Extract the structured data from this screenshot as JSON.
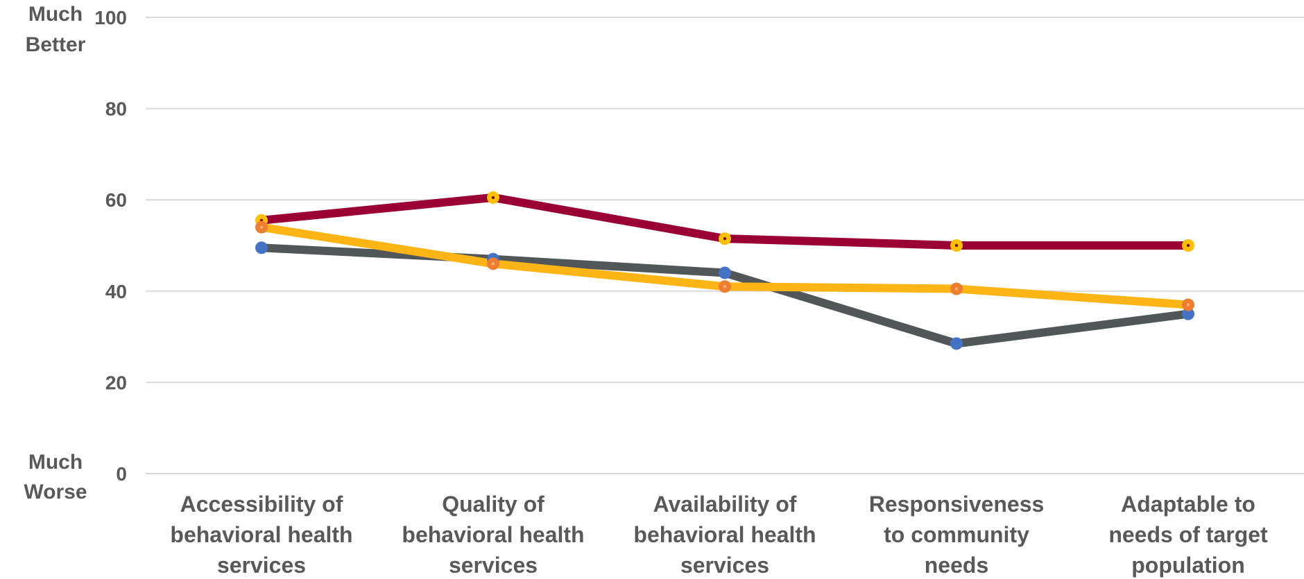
{
  "chart_data": {
    "type": "line",
    "categories": [
      [
        "Accessibility of",
        "behavioral health",
        "services"
      ],
      [
        "Quality of",
        "behavioral health",
        "services"
      ],
      [
        "Availability of",
        "behavioral health",
        "services"
      ],
      [
        "Responsiveness",
        "to community",
        "needs"
      ],
      [
        "Adaptable to",
        "needs of target",
        "population"
      ]
    ],
    "ylim": [
      0,
      100
    ],
    "yticks": [
      "0",
      "20",
      "40",
      "60",
      "80",
      "100"
    ],
    "y_top_label": [
      "Much",
      "Better"
    ],
    "y_bottom_label": [
      "Much",
      "Worse"
    ],
    "grid": true,
    "series": [
      {
        "values": [
          49.5,
          47,
          44,
          28.5,
          35
        ],
        "line_color": "#515759",
        "marker_color": "#4472c4",
        "marker_dot": "#4472c4"
      },
      {
        "values": [
          55.5,
          60.5,
          51.5,
          50,
          50
        ],
        "line_color": "#9b0035",
        "marker_color": "#ffc000",
        "marker_dot": "#7a0f0f"
      },
      {
        "values": [
          54,
          46,
          41,
          40.5,
          37
        ],
        "line_color": "#fdb515",
        "marker_color": "#ed7d31",
        "marker_dot": "#f8b070"
      }
    ]
  }
}
